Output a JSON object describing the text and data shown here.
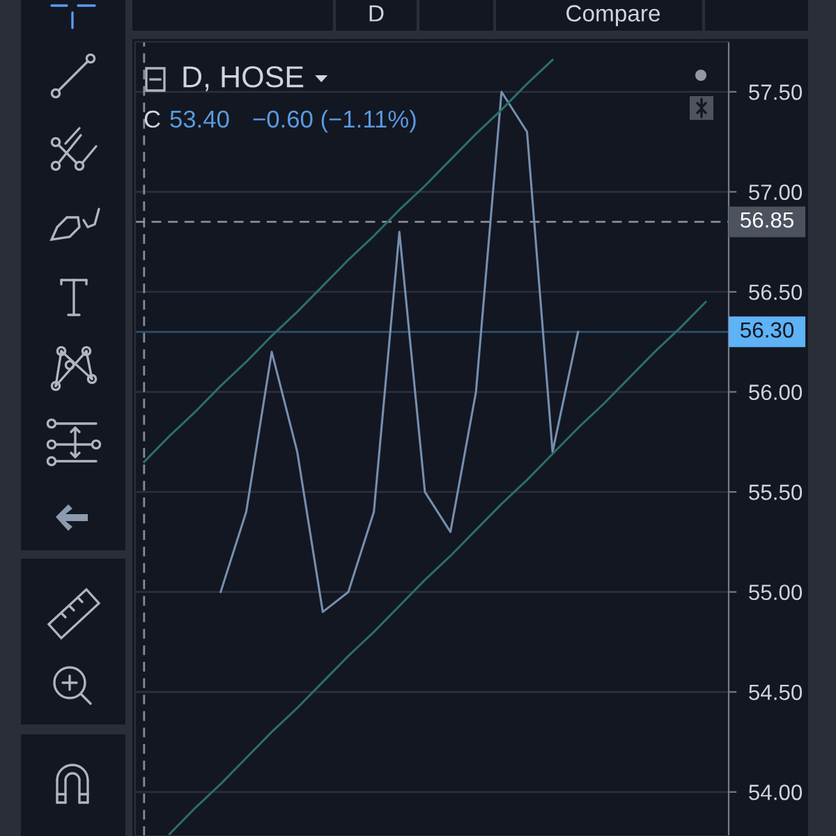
{
  "chart_data": {
    "type": "line",
    "title": "D, HOSE",
    "annotations": [
      "C",
      "53.40",
      "−0.60 (−1.11%)",
      "D",
      "Compare"
    ],
    "categories": [
      null,
      null,
      null,
      null,
      null,
      null,
      null,
      null,
      null,
      null,
      null,
      null,
      null,
      null,
      null,
      null,
      null,
      null,
      null,
      null,
      null,
      null,
      null
    ],
    "series": [
      {
        "color": "#7590ae",
        "values": [
          null,
          null,
          null,
          55.0,
          55.4,
          56.2,
          55.7,
          54.9,
          55.0,
          55.4,
          56.8,
          55.5,
          55.3,
          56.0,
          57.5,
          57.3,
          55.7,
          56.3,
          null,
          null,
          null,
          null,
          null
        ]
      },
      {
        "color": "#2b6f69",
        "values": [
          55.65,
          55.78,
          55.9,
          56.03,
          56.15,
          56.28,
          56.4,
          56.53,
          56.66,
          56.78,
          56.91,
          57.03,
          57.16,
          57.29,
          57.41,
          57.54,
          57.66,
          null,
          null,
          null,
          null,
          null,
          null
        ]
      },
      {
        "color": "#2b6f69",
        "values": [
          null,
          53.79,
          53.92,
          54.04,
          54.17,
          54.3,
          54.42,
          54.55,
          54.68,
          54.8,
          54.93,
          55.06,
          55.18,
          55.31,
          55.44,
          55.56,
          55.69,
          55.82,
          55.94,
          56.07,
          56.2,
          56.32,
          56.45
        ]
      }
    ],
    "ylim": [
      53.78,
      57.75
    ],
    "yticks": [
      {
        "value": 54,
        "label": "54.00"
      },
      {
        "value": 54.5,
        "label": "54.50"
      },
      {
        "value": 55,
        "label": "55.00"
      },
      {
        "value": 55.5,
        "label": "55.50"
      },
      {
        "value": 56,
        "label": "56.00"
      },
      {
        "value": 56.5,
        "label": "56.50"
      },
      {
        "value": 57,
        "label": "57.00"
      },
      {
        "value": 57.5,
        "label": "57.50"
      }
    ],
    "ref_lines": [
      {
        "axis": "y",
        "value": 56.85,
        "label": "56.85",
        "color": "#9598a1",
        "line_style": "dashed"
      },
      {
        "axis": "y",
        "value": 56.3,
        "label": "56.30",
        "color": "#5eb2f6",
        "line_style": "solid"
      }
    ],
    "grid": "y",
    "tick_labels": "y",
    "line_style": "solid"
  }
}
